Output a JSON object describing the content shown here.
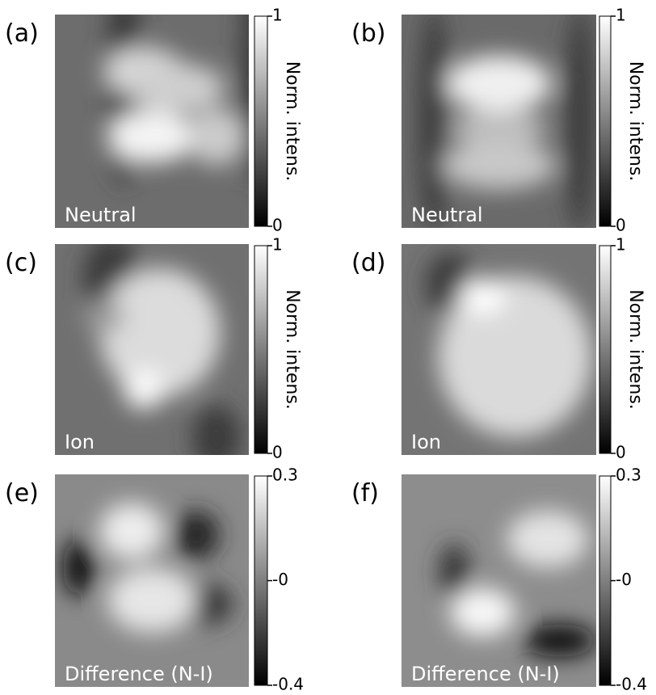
{
  "panels": [
    {
      "label": "(a)",
      "caption": "Neutral",
      "colorbar": {
        "ticks": [
          "1",
          "0"
        ],
        "title": "Norm. intens."
      }
    },
    {
      "label": "(b)",
      "caption": "Neutral",
      "colorbar": {
        "ticks": [
          "1",
          "0"
        ],
        "title": "Norm. intens."
      }
    },
    {
      "label": "(c)",
      "caption": "Ion",
      "colorbar": {
        "ticks": [
          "1",
          "0"
        ],
        "title": "Norm. intens."
      }
    },
    {
      "label": "(d)",
      "caption": "Ion",
      "colorbar": {
        "ticks": [
          "1",
          "0"
        ],
        "title": "Norm. intens."
      }
    },
    {
      "label": "(e)",
      "caption": "Difference (N-I)",
      "colorbar": {
        "ticks": [
          "0.3",
          "-0",
          "-0.4"
        ]
      }
    },
    {
      "label": "(f)",
      "caption": "Difference (N-I)",
      "colorbar": {
        "ticks": [
          "0.3",
          "-0",
          "-0.4"
        ]
      }
    }
  ]
}
